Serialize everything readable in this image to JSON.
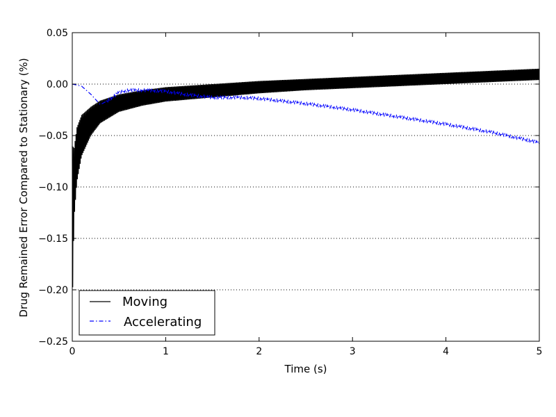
{
  "chart_data": {
    "type": "line",
    "title": "",
    "xlabel": "Time (s)",
    "ylabel": "Drug Remained Error Compared to Stationary (%)",
    "xlim": [
      0,
      5
    ],
    "ylim": [
      -0.25,
      0.05
    ],
    "xticks": [
      0,
      1,
      2,
      3,
      4,
      5
    ],
    "xtick_labels": [
      "0",
      "1",
      "2",
      "3",
      "4",
      "5"
    ],
    "yticks": [
      0.05,
      0.0,
      -0.05,
      -0.1,
      -0.15,
      -0.2,
      -0.25
    ],
    "ytick_labels": [
      "0.05",
      "0.00",
      "−0.05",
      "−0.10",
      "−0.15",
      "−0.20",
      "−0.25"
    ],
    "grid": "horizontal-dotted",
    "legend_position": "lower-left",
    "series": [
      {
        "name": "Moving",
        "style": "solid",
        "color": "#000000",
        "envelope_x": [
          0.0,
          0.02,
          0.05,
          0.1,
          0.2,
          0.3,
          0.5,
          0.75,
          1.0,
          1.5,
          2.0,
          2.5,
          3.0,
          3.5,
          4.0,
          4.5,
          5.0
        ],
        "upper": [
          -0.06,
          -0.062,
          -0.042,
          -0.03,
          -0.022,
          -0.016,
          -0.01,
          -0.006,
          -0.003,
          0.0,
          0.003,
          0.005,
          0.007,
          0.009,
          0.011,
          0.013,
          0.015
        ],
        "lower": [
          -0.22,
          -0.13,
          -0.095,
          -0.07,
          -0.05,
          -0.038,
          -0.027,
          -0.021,
          -0.017,
          -0.013,
          -0.009,
          -0.006,
          -0.004,
          -0.002,
          0.0,
          0.002,
          0.004
        ]
      },
      {
        "name": "Accelerating",
        "style": "dashdot",
        "color": "#0000ff",
        "x": [
          0.0,
          0.1,
          0.2,
          0.3,
          0.4,
          0.5,
          0.6,
          0.8,
          1.0,
          1.2,
          1.5,
          1.8,
          2.0,
          2.2,
          2.5,
          3.0,
          3.5,
          4.0,
          4.5,
          5.0
        ],
        "y": [
          0.0,
          -0.002,
          -0.01,
          -0.02,
          -0.015,
          -0.008,
          -0.006,
          -0.006,
          -0.007,
          -0.01,
          -0.013,
          -0.013,
          -0.014,
          -0.016,
          -0.019,
          -0.025,
          -0.032,
          -0.039,
          -0.047,
          -0.057
        ]
      }
    ]
  }
}
